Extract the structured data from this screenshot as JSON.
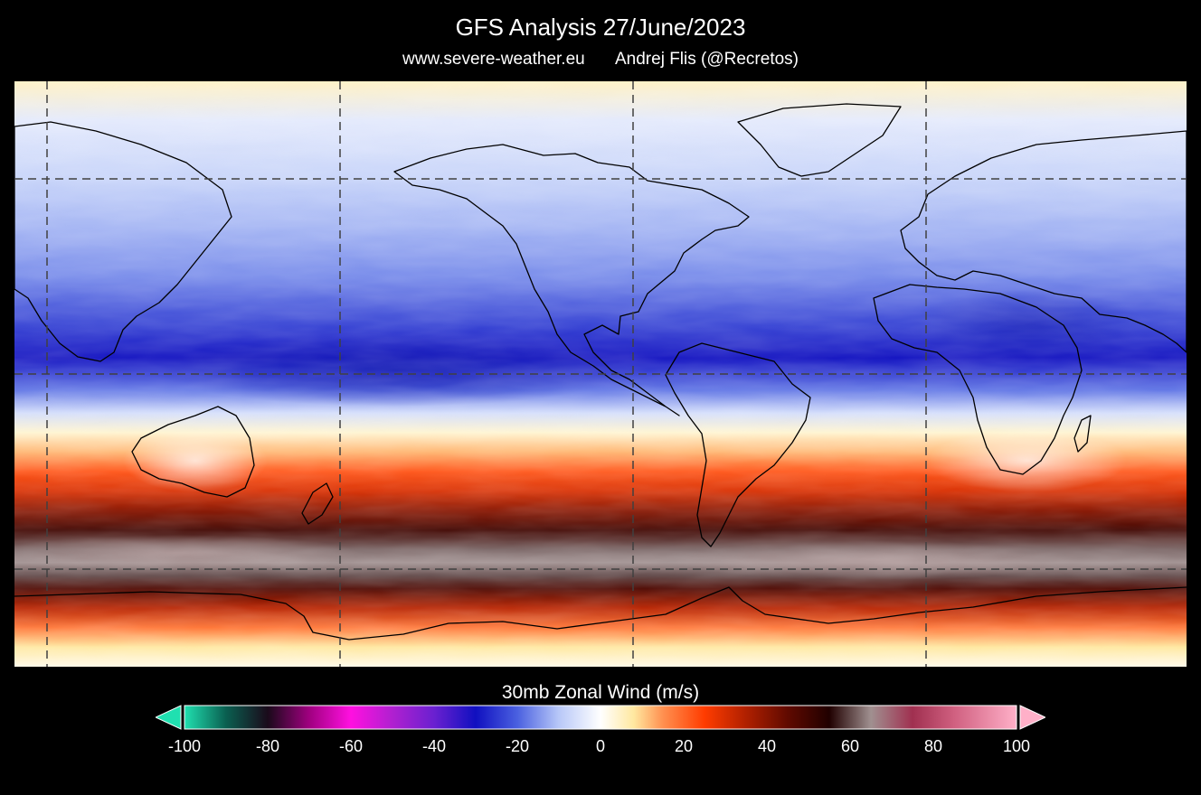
{
  "header": {
    "title": "GFS Analysis 27/June/2023",
    "website": "www.severe-weather.eu",
    "author": "Andrej Flis (@Recretos)"
  },
  "map": {
    "projection": "equirectangular",
    "lon_range": [
      -180,
      180
    ],
    "lat_range": [
      -90,
      90
    ],
    "graticule_dashed": true,
    "field_bands": [
      {
        "lat": 90,
        "value": 5
      },
      {
        "lat": 78,
        "value": -4
      },
      {
        "lat": 60,
        "value": -8
      },
      {
        "lat": 45,
        "value": -12
      },
      {
        "lat": 30,
        "value": -16
      },
      {
        "lat": 15,
        "value": -24
      },
      {
        "lat": 5,
        "value": -30
      },
      {
        "lat": -5,
        "value": -18
      },
      {
        "lat": -12,
        "value": -6
      },
      {
        "lat": -18,
        "value": 4
      },
      {
        "lat": -24,
        "value": 12
      },
      {
        "lat": -30,
        "value": 22
      },
      {
        "lat": -36,
        "value": 30
      },
      {
        "lat": -42,
        "value": 40
      },
      {
        "lat": -48,
        "value": 50
      },
      {
        "lat": -54,
        "value": 62
      },
      {
        "lat": -58,
        "value": 65
      },
      {
        "lat": -62,
        "value": 60
      },
      {
        "lat": -66,
        "value": 48
      },
      {
        "lat": -72,
        "value": 34
      },
      {
        "lat": -78,
        "value": 18
      },
      {
        "lat": -84,
        "value": 8
      },
      {
        "lat": -90,
        "value": 2
      }
    ]
  },
  "colorbar": {
    "title": "30mb Zonal Wind (m/s)",
    "min": -100,
    "max": 100,
    "ticks": [
      "-100",
      "-80",
      "-60",
      "-40",
      "-20",
      "0",
      "20",
      "40",
      "60",
      "80",
      "100"
    ],
    "stops": [
      {
        "v": -100,
        "c": "#20e0b0"
      },
      {
        "v": -90,
        "c": "#0a5f50"
      },
      {
        "v": -80,
        "c": "#1a0a1a"
      },
      {
        "v": -70,
        "c": "#a00080"
      },
      {
        "v": -60,
        "c": "#ff10e0"
      },
      {
        "v": -50,
        "c": "#b020d0"
      },
      {
        "v": -40,
        "c": "#6a20d0"
      },
      {
        "v": -30,
        "c": "#1010c0"
      },
      {
        "v": -20,
        "c": "#4a60e0"
      },
      {
        "v": -10,
        "c": "#b8c8f8"
      },
      {
        "v": 0,
        "c": "#ffffff"
      },
      {
        "v": 8,
        "c": "#ffe8a0"
      },
      {
        "v": 15,
        "c": "#ff9050"
      },
      {
        "v": 25,
        "c": "#ff3c00"
      },
      {
        "v": 35,
        "c": "#b02000"
      },
      {
        "v": 45,
        "c": "#600a00"
      },
      {
        "v": 55,
        "c": "#200000"
      },
      {
        "v": 65,
        "c": "#a09090"
      },
      {
        "v": 75,
        "c": "#a03050"
      },
      {
        "v": 85,
        "c": "#d06080"
      },
      {
        "v": 100,
        "c": "#ffb0c8"
      }
    ]
  }
}
